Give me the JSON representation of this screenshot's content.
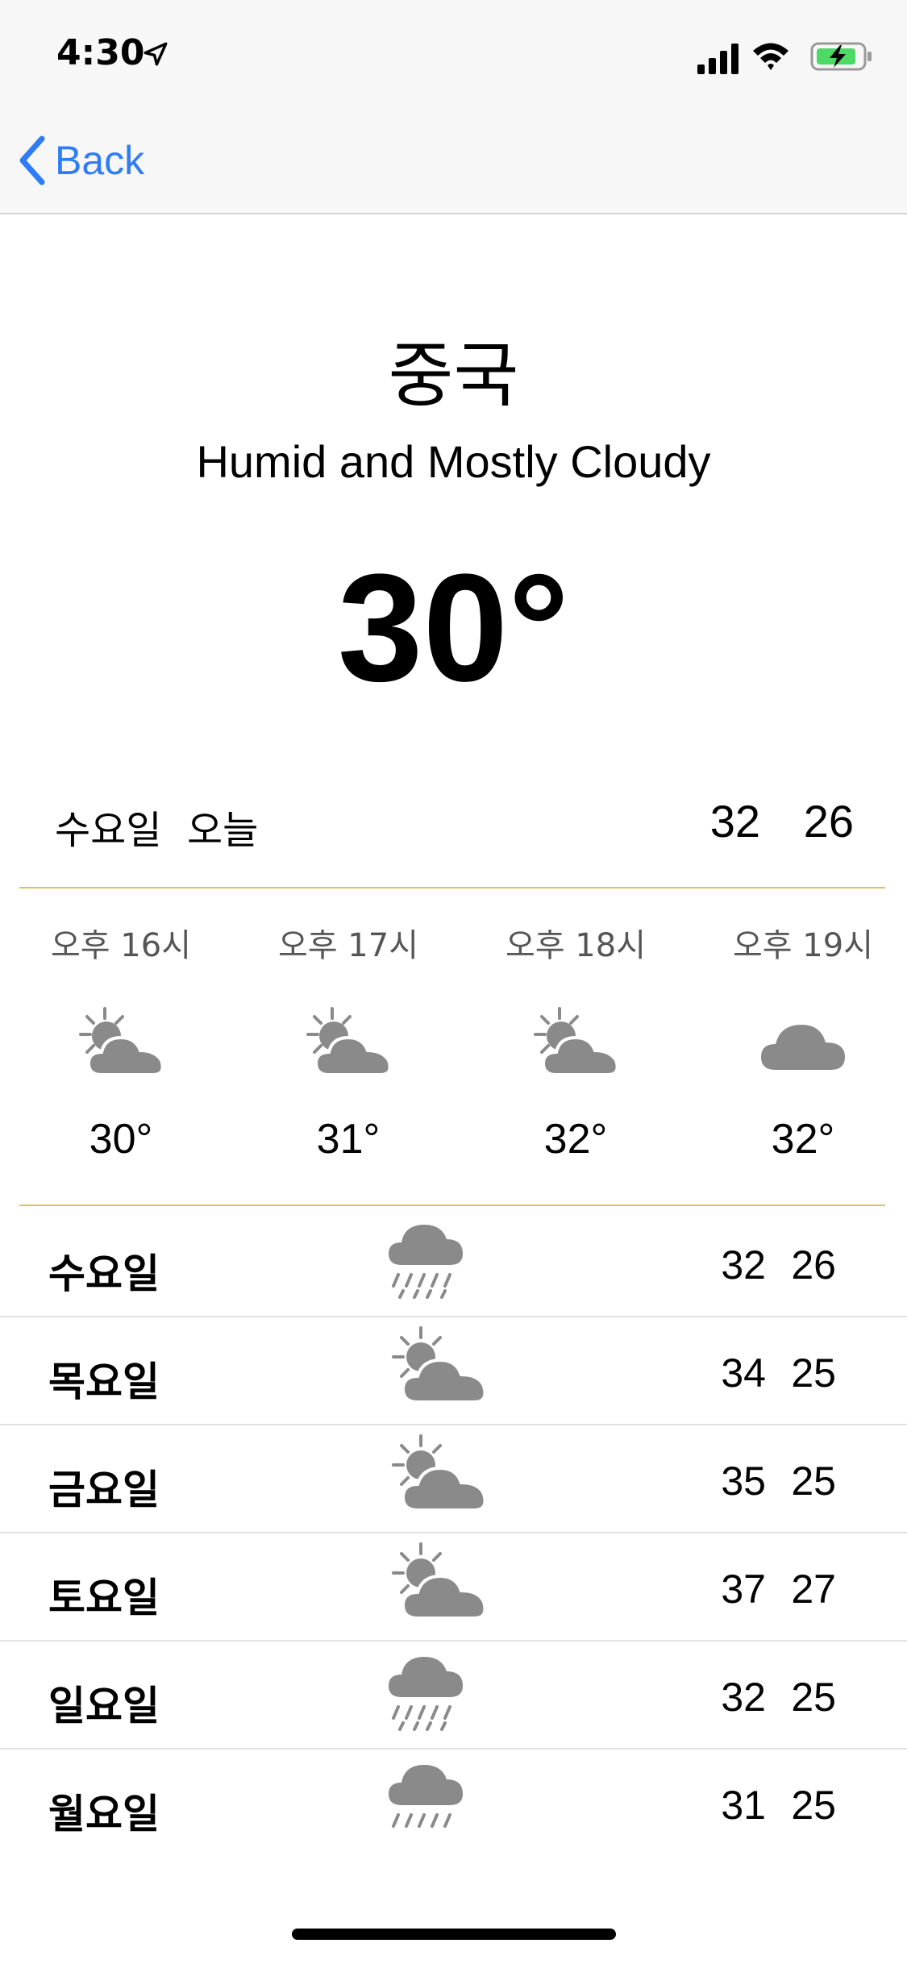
{
  "status_bar": {
    "time": "4:30",
    "icons": [
      "location-arrow-icon",
      "signal-icon",
      "wifi-icon",
      "battery-charging-icon"
    ]
  },
  "nav": {
    "back_label": "Back"
  },
  "colors": {
    "accent": "#2f7cf6",
    "divider": "#e9ba5a",
    "icon_gray": "#8a8a8a"
  },
  "header": {
    "city": "중국",
    "condition": "Humid and Mostly Cloudy",
    "temperature": "30°"
  },
  "today": {
    "day": "수요일",
    "label": "오늘",
    "high": "32",
    "low": "26"
  },
  "hourly": [
    {
      "time": "오후 16시",
      "icon": "partly-cloudy-icon",
      "temp": "30°"
    },
    {
      "time": "오후 17시",
      "icon": "partly-cloudy-icon",
      "temp": "31°"
    },
    {
      "time": "오후 18시",
      "icon": "partly-cloudy-icon",
      "temp": "32°"
    },
    {
      "time": "오후 19시",
      "icon": "cloud-icon",
      "temp": "32°"
    }
  ],
  "daily": [
    {
      "day": "수요일",
      "icon": "rain-icon",
      "high": "32",
      "low": "26"
    },
    {
      "day": "목요일",
      "icon": "partly-cloudy-icon",
      "high": "34",
      "low": "25"
    },
    {
      "day": "금요일",
      "icon": "partly-cloudy-icon",
      "high": "35",
      "low": "25"
    },
    {
      "day": "토요일",
      "icon": "partly-cloudy-icon",
      "high": "37",
      "low": "27"
    },
    {
      "day": "일요일",
      "icon": "rain-icon",
      "high": "32",
      "low": "25"
    },
    {
      "day": "월요일",
      "icon": "rain-icon",
      "high": "31",
      "low": "25"
    }
  ]
}
